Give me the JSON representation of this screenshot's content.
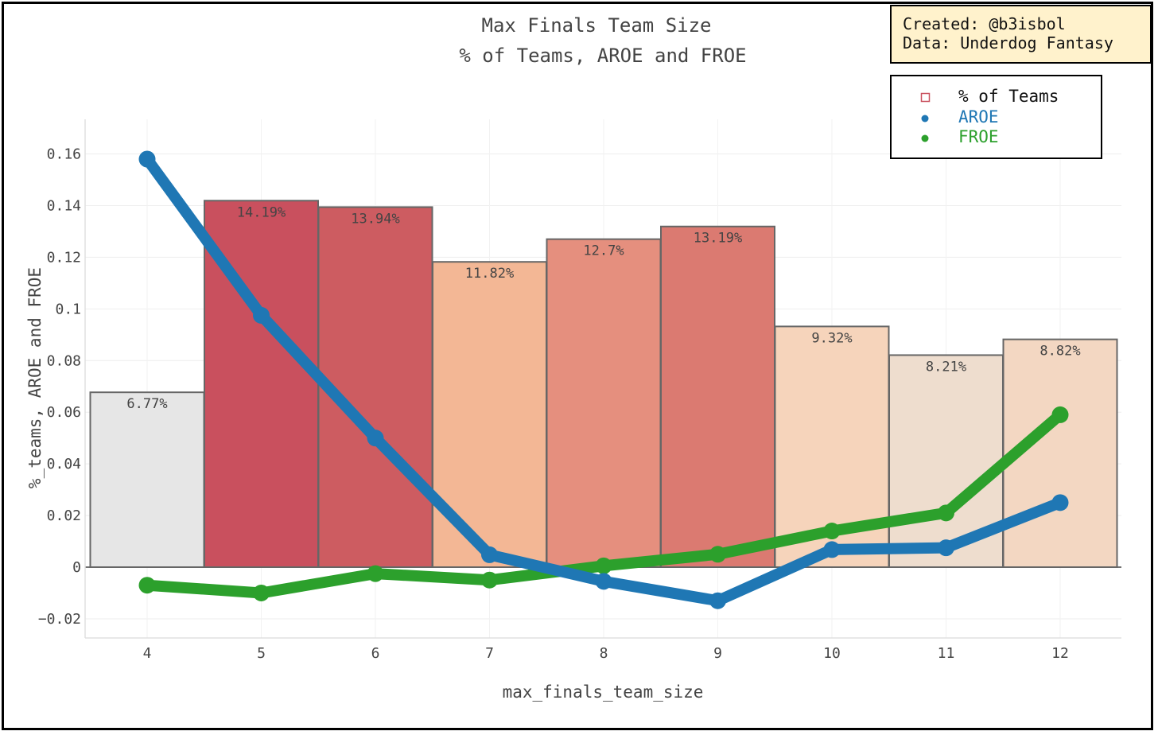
{
  "chart_data": {
    "type": "bar",
    "title": "Max Finals Team Size",
    "subtitle": "% of Teams, AROE and FROE",
    "xlabel": "max_finals_team_size",
    "ylabel": "%_teams, AROE and FROE",
    "categories": [
      "4",
      "5",
      "6",
      "7",
      "8",
      "9",
      "10",
      "11",
      "12"
    ],
    "ylim": [
      -0.027,
      0.172
    ],
    "yticks": [
      -0.02,
      0,
      0.02,
      0.04,
      0.06,
      0.08,
      0.1,
      0.12,
      0.14,
      0.16
    ],
    "ytick_labels": [
      "−0.02",
      "0",
      "0.02",
      "0.04",
      "0.06",
      "0.08",
      "0.1",
      "0.12",
      "0.14",
      "0.16"
    ],
    "grid": true,
    "legend_position": "top-right",
    "bars": {
      "name": "% of Teams",
      "values": [
        0.0677,
        0.1419,
        0.1394,
        0.1182,
        0.127,
        0.1319,
        0.0932,
        0.0821,
        0.0882
      ],
      "labels": [
        "6.77%",
        "14.19%",
        "13.94%",
        "11.82%",
        "12.7%",
        "13.19%",
        "9.32%",
        "8.21%",
        "8.82%"
      ],
      "colors": [
        "#e6e6e6",
        "#c9505e",
        "#cd5c61",
        "#f3b795",
        "#e58f7e",
        "#db7a71",
        "#f6d4bb",
        "#eeddce",
        "#f3d7c2"
      ]
    },
    "series": [
      {
        "name": "AROE",
        "color": "#1f77b4",
        "values": [
          0.158,
          0.0975,
          0.05,
          0.0048,
          -0.0055,
          -0.013,
          0.0068,
          0.0075,
          0.025
        ]
      },
      {
        "name": "FROE",
        "color": "#2ca02c",
        "values": [
          -0.007,
          -0.01,
          -0.0025,
          -0.005,
          0.0005,
          0.005,
          0.014,
          0.021,
          0.059
        ]
      }
    ]
  },
  "credit": {
    "created": "Created: @b3isbol",
    "data": "Data: Underdog Fantasy"
  },
  "legend": {
    "bars_label": "% of Teams",
    "aroe_label": "AROE",
    "froe_label": "FROE",
    "bars_swatch_color": "#c9505e"
  }
}
